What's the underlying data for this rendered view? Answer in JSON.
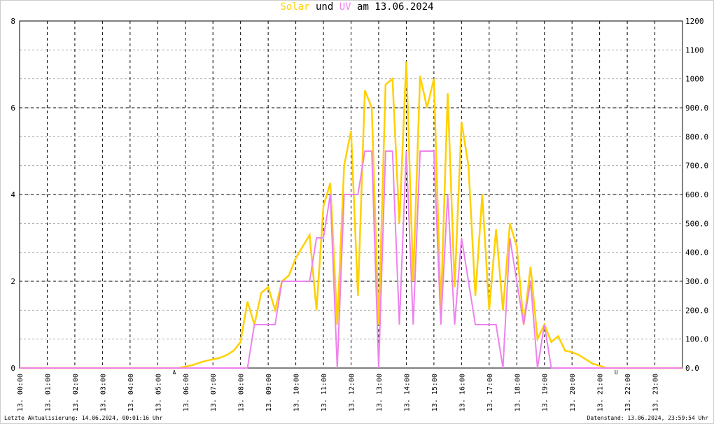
{
  "chart_data": {
    "type": "line",
    "title_mid": "und",
    "title_date": "am 13.06.2024",
    "footer_left": "Letzte Aktualisierung: 14.06.2024, 00:01:16 Uhr",
    "footer_right": "Datenstand: 13.06.2024, 23:59:54 Uhr",
    "xlim": [
      0,
      24
    ],
    "xticks": [
      {
        "value": 0,
        "label": "13. 00:00"
      },
      {
        "value": 1,
        "label": "13. 01:00"
      },
      {
        "value": 2,
        "label": "13. 02:00"
      },
      {
        "value": 3,
        "label": "13. 03:00"
      },
      {
        "value": 4,
        "label": "13. 04:00"
      },
      {
        "value": 5,
        "label": "13. 05:00"
      },
      {
        "value": 6,
        "label": "13. 06:00"
      },
      {
        "value": 7,
        "label": "13. 07:00"
      },
      {
        "value": 8,
        "label": "13. 08:00"
      },
      {
        "value": 9,
        "label": "13. 09:00"
      },
      {
        "value": 10,
        "label": "13. 10:00"
      },
      {
        "value": 11,
        "label": "13. 11:00"
      },
      {
        "value": 12,
        "label": "13. 12:00"
      },
      {
        "value": 13,
        "label": "13. 13:00"
      },
      {
        "value": 14,
        "label": "13. 14:00"
      },
      {
        "value": 15,
        "label": "13. 15:00"
      },
      {
        "value": 16,
        "label": "13. 16:00"
      },
      {
        "value": 17,
        "label": "13. 17:00"
      },
      {
        "value": 18,
        "label": "13. 18:00"
      },
      {
        "value": 19,
        "label": "13. 19:00"
      },
      {
        "value": 20,
        "label": "13. 20:00"
      },
      {
        "value": 21,
        "label": "13. 21:00"
      },
      {
        "value": 22,
        "label": "13. 22:00"
      },
      {
        "value": 23,
        "label": "13. 23:00"
      }
    ],
    "ylim": [
      0,
      8
    ],
    "yticks": [
      0,
      2,
      4,
      6,
      8
    ],
    "y2lim": [
      0,
      1200
    ],
    "y2ticks": [
      {
        "value": 0,
        "label": "0.0"
      },
      {
        "value": 100,
        "label": "100.0"
      },
      {
        "value": 200,
        "label": "200.0"
      },
      {
        "value": 300,
        "label": "300.0"
      },
      {
        "value": 400,
        "label": "400.0"
      },
      {
        "value": 500,
        "label": "500.0"
      },
      {
        "value": 600,
        "label": "600.0"
      },
      {
        "value": 700,
        "label": "700.0"
      },
      {
        "value": 800,
        "label": "800.0"
      },
      {
        "value": 900,
        "label": "900.0"
      },
      {
        "value": 1000,
        "label": "1000"
      },
      {
        "value": 1100,
        "label": "1100"
      },
      {
        "value": 1200,
        "label": "1200"
      }
    ],
    "grid": true,
    "annotations": [
      {
        "text": "A",
        "x": 5.6,
        "color": "#ff0000"
      },
      {
        "text": "U",
        "x": 21.6,
        "color": "#ff0000"
      }
    ],
    "x": [
      0,
      0.25,
      0.5,
      0.75,
      1,
      1.25,
      1.5,
      1.75,
      2,
      2.25,
      2.5,
      2.75,
      3,
      3.25,
      3.5,
      3.75,
      4,
      4.25,
      4.5,
      4.75,
      5,
      5.25,
      5.5,
      5.75,
      6,
      6.25,
      6.5,
      6.75,
      7,
      7.25,
      7.5,
      7.75,
      8,
      8.25,
      8.5,
      8.75,
      9,
      9.25,
      9.5,
      9.75,
      10,
      10.25,
      10.5,
      10.75,
      11,
      11.25,
      11.5,
      11.75,
      12,
      12.25,
      12.5,
      12.75,
      13,
      13.25,
      13.5,
      13.75,
      14,
      14.25,
      14.5,
      14.75,
      15,
      15.25,
      15.5,
      15.75,
      16,
      16.25,
      16.5,
      16.75,
      17,
      17.25,
      17.5,
      17.75,
      18,
      18.25,
      18.5,
      18.75,
      19,
      19.25,
      19.5,
      19.75,
      20,
      20.25,
      20.5,
      20.75,
      21,
      21.25,
      21.5,
      21.75,
      22,
      22.25,
      22.5,
      22.75,
      23,
      23.25,
      23.5,
      23.75,
      24
    ],
    "series": [
      {
        "name": "Solar",
        "color": "#ffd000",
        "axis": "y2",
        "values": [
          0,
          0,
          0,
          0,
          0,
          0,
          0,
          0,
          0,
          0,
          0,
          0,
          0,
          0,
          0,
          0,
          0,
          0,
          0,
          0,
          0,
          0,
          0,
          0,
          5,
          10,
          18,
          25,
          30,
          35,
          45,
          60,
          90,
          230,
          150,
          260,
          280,
          200,
          300,
          320,
          380,
          420,
          460,
          200,
          560,
          640,
          150,
          700,
          820,
          250,
          960,
          900,
          150,
          980,
          1000,
          500,
          1060,
          300,
          1010,
          900,
          1000,
          200,
          950,
          280,
          850,
          700,
          250,
          600,
          200,
          480,
          200,
          500,
          420,
          150,
          350,
          100,
          150,
          90,
          110,
          60,
          55,
          45,
          30,
          15,
          8,
          0,
          0,
          0,
          0,
          0,
          0,
          0,
          0,
          0,
          0,
          0,
          0
        ]
      },
      {
        "name": "UV",
        "color": "#ee82ee",
        "axis": "y",
        "values": [
          0,
          0,
          0,
          0,
          0,
          0,
          0,
          0,
          0,
          0,
          0,
          0,
          0,
          0,
          0,
          0,
          0,
          0,
          0,
          0,
          0,
          0,
          0,
          0,
          0,
          0,
          0,
          0,
          0,
          0,
          0,
          0,
          0,
          0,
          1,
          1,
          1,
          1,
          2,
          2,
          2,
          2,
          2,
          3,
          3,
          4,
          0,
          4,
          4,
          4,
          5,
          5,
          0,
          5,
          5,
          1,
          5,
          1,
          5,
          5,
          5,
          1,
          4,
          1,
          3,
          2,
          1,
          1,
          1,
          1,
          0,
          3,
          2,
          1,
          2,
          0,
          1,
          0,
          0,
          0,
          0,
          0,
          0,
          0,
          0,
          0,
          0,
          0,
          0,
          0,
          0,
          0,
          0,
          0,
          0,
          0,
          0
        ]
      }
    ]
  }
}
